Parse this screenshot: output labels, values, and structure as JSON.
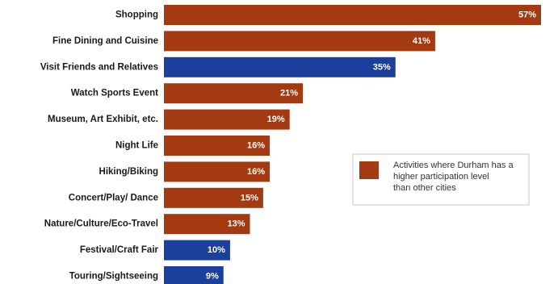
{
  "chart_data": {
    "type": "bar",
    "orientation": "horizontal",
    "categories": [
      "Shopping",
      "Fine Dining and Cuisine",
      "Visit Friends and Relatives",
      "Watch Sports Event",
      "Museum, Art Exhibit, etc.",
      "Night Life",
      "Hiking/Biking",
      "Concert/Play/ Dance",
      "Nature/Culture/Eco-Travel",
      "Festival/Craft Fair",
      "Touring/Sightseeing"
    ],
    "values": [
      57,
      41,
      35,
      21,
      19,
      16,
      16,
      15,
      13,
      10,
      9
    ],
    "value_labels": [
      "57%",
      "41%",
      "35%",
      "21%",
      "19%",
      "16%",
      "16%",
      "15%",
      "13%",
      "10%",
      "9%"
    ],
    "highlight": [
      true,
      true,
      false,
      true,
      true,
      true,
      true,
      true,
      true,
      false,
      false
    ],
    "colors": {
      "highlight": "#A33A12",
      "other": "#1B3F9B"
    },
    "xlim": [
      0,
      60
    ],
    "grid": false,
    "legend": {
      "placement": "right",
      "entries": [
        {
          "label": "Activities where Durham has a higher participation level than other cities",
          "color": "#A33A12"
        }
      ]
    }
  }
}
